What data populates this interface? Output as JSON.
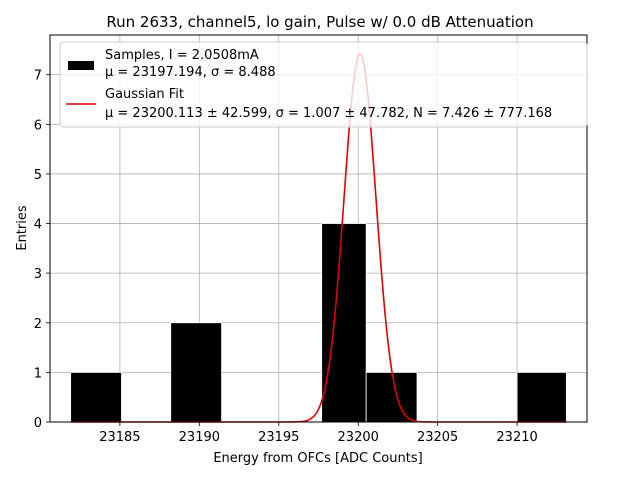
{
  "chart_data": {
    "type": "bar",
    "title": "Run 2633, channel5, lo gain, Pulse w/ 0.0 dB Attenuation",
    "xlabel": "Energy from OFCs [ADC Counts]",
    "ylabel": "Entries",
    "xlim": [
      23180.6,
      23214.4
    ],
    "ylim": [
      0,
      7.8
    ],
    "grid": true,
    "legend_position": "top",
    "xticks": [
      23185,
      23190,
      23195,
      23200,
      23205,
      23210
    ],
    "yticks": [
      0,
      1,
      2,
      3,
      4,
      5,
      6,
      7
    ],
    "histogram": {
      "name": "Samples, I = 2.0508mA",
      "stats": "μ = 23197.194, σ = 8.488",
      "color": "#000000",
      "bins": [
        {
          "x0": 23181.9,
          "x1": 23185.1,
          "count": 1
        },
        {
          "x0": 23185.1,
          "x1": 23188.2,
          "count": 0
        },
        {
          "x0": 23188.2,
          "x1": 23191.4,
          "count": 2
        },
        {
          "x0": 23191.4,
          "x1": 23194.5,
          "count": 0
        },
        {
          "x0": 23194.5,
          "x1": 23197.7,
          "count": 0
        },
        {
          "x0": 23197.7,
          "x1": 23200.5,
          "count": 4
        },
        {
          "x0": 23200.5,
          "x1": 23203.7,
          "count": 1
        },
        {
          "x0": 23203.7,
          "x1": 23206.8,
          "count": 0
        },
        {
          "x0": 23206.8,
          "x1": 23210.0,
          "count": 0
        },
        {
          "x0": 23210.0,
          "x1": 23213.1,
          "count": 1
        }
      ]
    },
    "fit": {
      "name": "Gaussian Fit",
      "params": "μ = 23200.113 ± 42.599, σ = 1.007 ± 47.782, N = 7.426 ± 777.168",
      "mu": 23200.113,
      "sigma": 1.007,
      "N": 7.426,
      "x_range": [
        23181.9,
        23213.1
      ],
      "color": "#e00000"
    }
  }
}
